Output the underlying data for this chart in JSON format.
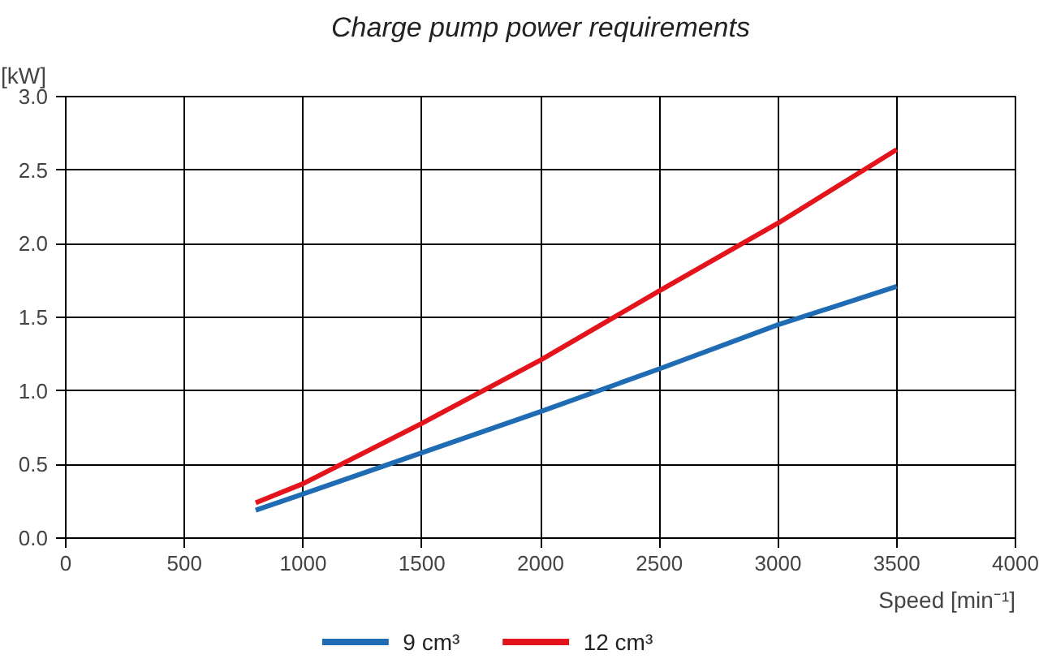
{
  "chart_data": {
    "type": "line",
    "title": "Charge pump power requirements",
    "xlabel": "Speed [min⁻¹]",
    "ylabel": "[kW]",
    "x": [
      800,
      1000,
      1500,
      2000,
      2500,
      3000,
      3500
    ],
    "series": [
      {
        "name": "9 cm³",
        "color": "#1f6cb4",
        "values": [
          0.19,
          0.3,
          0.58,
          0.86,
          1.15,
          1.45,
          1.71
        ]
      },
      {
        "name": "12 cm³",
        "color": "#e3141c",
        "values": [
          0.24,
          0.37,
          0.78,
          1.21,
          1.68,
          2.14,
          2.64
        ]
      }
    ],
    "xlim": [
      0,
      4000
    ],
    "xticks": [
      0,
      500,
      1000,
      1500,
      2000,
      2500,
      3000,
      3500,
      4000
    ],
    "ylim": [
      0,
      3.0
    ],
    "yticks": [
      {
        "value": 0,
        "label": "0.0"
      },
      {
        "value": 0.5,
        "label": "0.5"
      },
      {
        "value": 1,
        "label": "1.0"
      },
      {
        "value": 1.5,
        "label": "1.5"
      },
      {
        "value": 2,
        "label": "2.0"
      },
      {
        "value": 2.5,
        "label": "2.5"
      },
      {
        "value": 3,
        "label": "3.0"
      }
    ],
    "grid": true,
    "legend": "bottom",
    "marker": "none",
    "line_style": "solid"
  }
}
